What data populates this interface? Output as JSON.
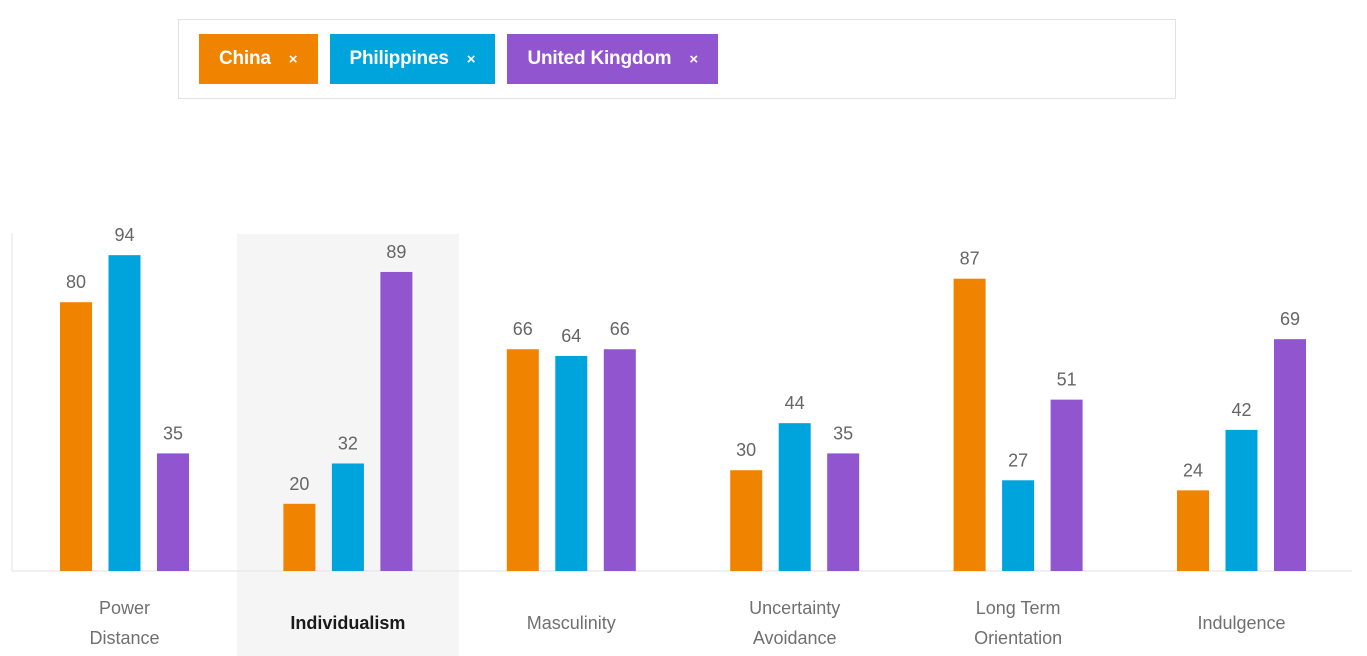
{
  "countries": [
    {
      "label": "China",
      "close": "×",
      "color": "#f08300"
    },
    {
      "label": "Philippines",
      "close": "×",
      "color": "#00a4dc"
    },
    {
      "label": "United Kingdom",
      "close": "×",
      "color": "#9055cf"
    }
  ],
  "selected_category_index": 1,
  "highlight_color": "#f5f5f5",
  "chart_data": {
    "type": "bar",
    "categories": [
      [
        "Power",
        "Distance"
      ],
      [
        "Individualism"
      ],
      [
        "Masculinity"
      ],
      [
        "Uncertainty",
        "Avoidance"
      ],
      [
        "Long Term",
        "Orientation"
      ],
      [
        "Indulgence"
      ]
    ],
    "series": [
      {
        "name": "China",
        "color": "#f08300",
        "values": [
          80,
          20,
          66,
          30,
          87,
          24
        ]
      },
      {
        "name": "Philippines",
        "color": "#00a4dc",
        "values": [
          94,
          32,
          64,
          44,
          27,
          42
        ]
      },
      {
        "name": "United Kingdom",
        "color": "#9055cf",
        "values": [
          35,
          89,
          66,
          35,
          51,
          69
        ]
      }
    ],
    "ylim": [
      0,
      100
    ],
    "grid": false,
    "legend": "top"
  }
}
